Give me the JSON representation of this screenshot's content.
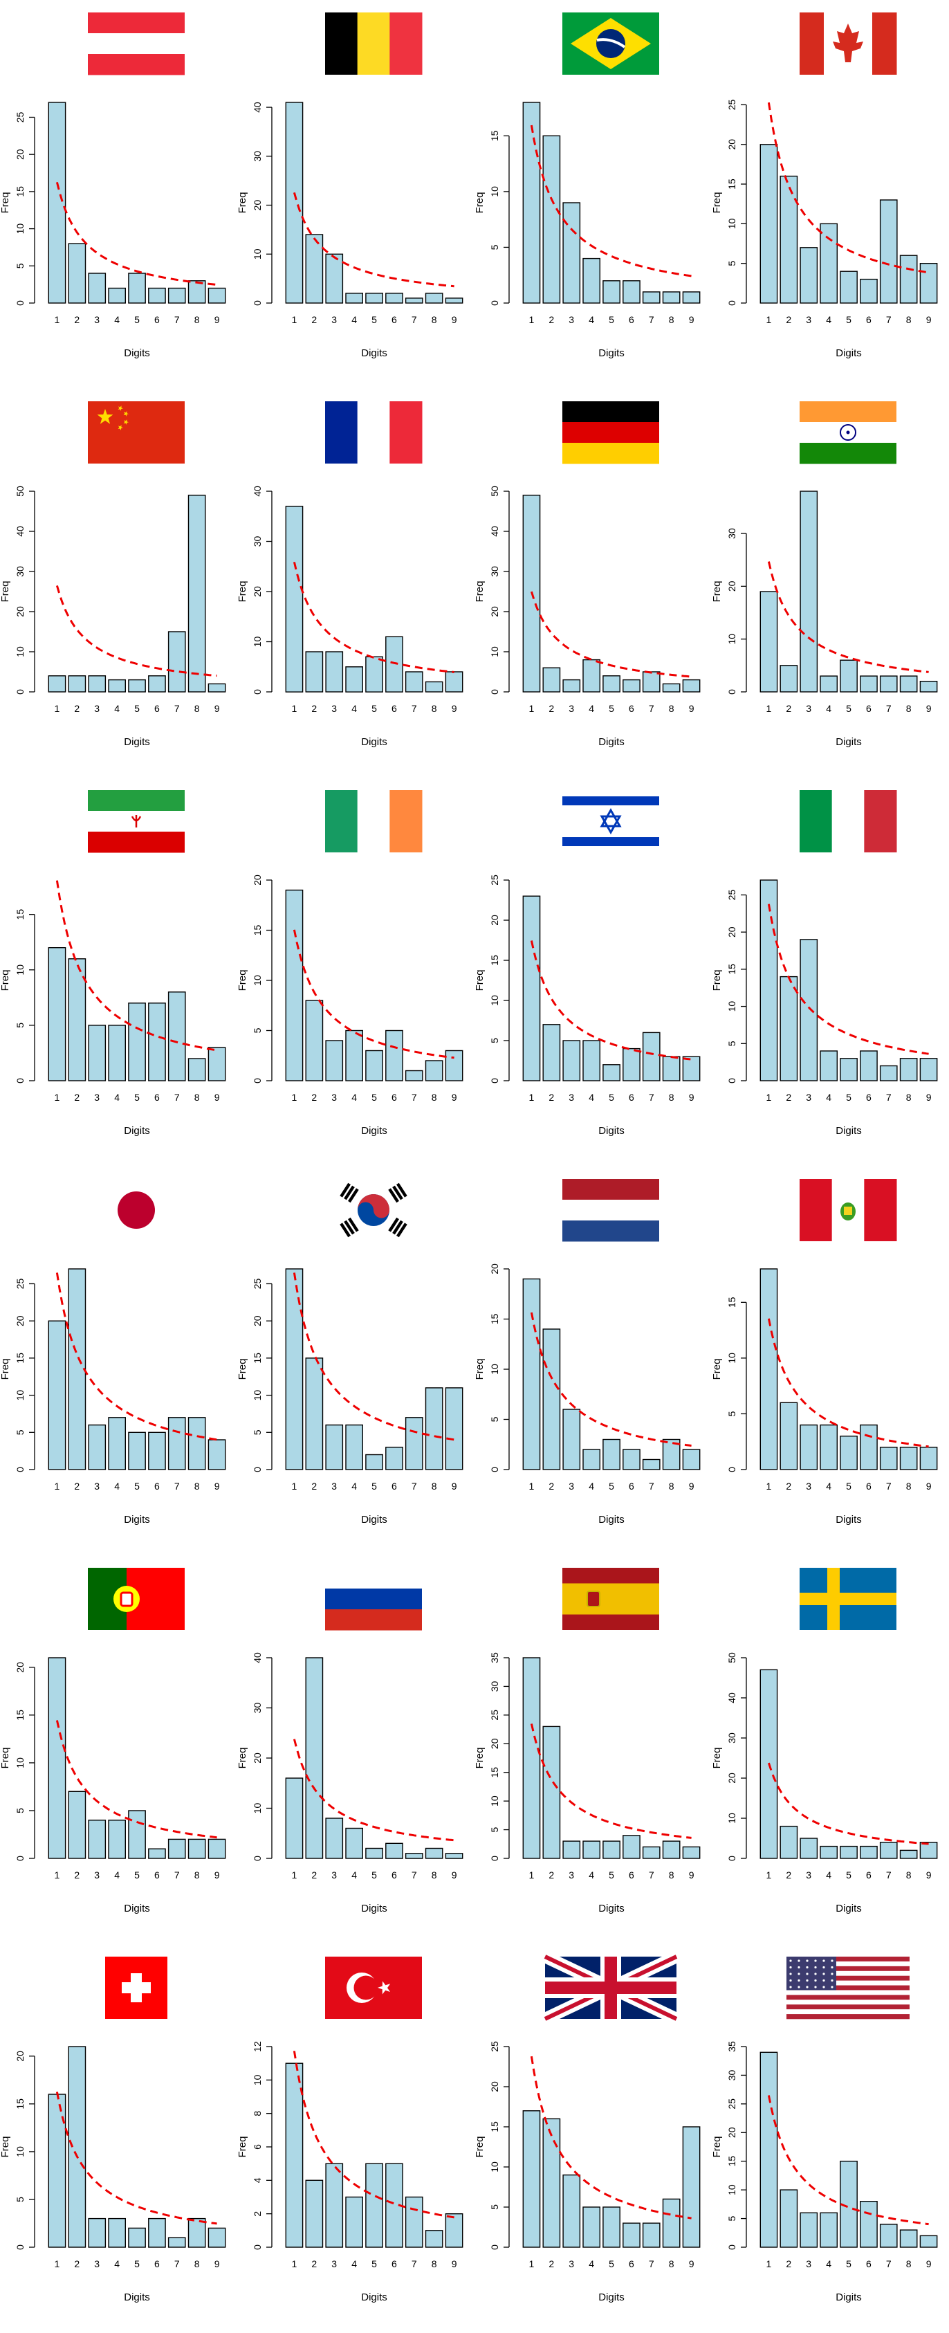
{
  "chart_data": [
    {
      "type": "bar",
      "flag": "austria",
      "categories": [
        "1",
        "2",
        "3",
        "4",
        "5",
        "6",
        "7",
        "8",
        "9"
      ],
      "values": [
        27,
        8,
        4,
        2,
        4,
        2,
        2,
        3,
        2
      ],
      "benford_total": 54,
      "yticks": [
        0,
        5,
        10,
        15,
        20,
        25
      ],
      "ylim": [
        0,
        27
      ],
      "xlabel": "Digits",
      "ylabel": "Freq"
    },
    {
      "type": "bar",
      "flag": "belgium",
      "categories": [
        "1",
        "2",
        "3",
        "4",
        "5",
        "6",
        "7",
        "8",
        "9"
      ],
      "values": [
        41,
        14,
        10,
        2,
        2,
        2,
        1,
        2,
        1
      ],
      "benford_total": 75,
      "yticks": [
        0,
        10,
        20,
        30,
        40
      ],
      "ylim": [
        0,
        41
      ],
      "xlabel": "Digits",
      "ylabel": "Freq"
    },
    {
      "type": "bar",
      "flag": "brazil",
      "categories": [
        "1",
        "2",
        "3",
        "4",
        "5",
        "6",
        "7",
        "8",
        "9"
      ],
      "values": [
        18,
        15,
        9,
        4,
        2,
        2,
        1,
        1,
        1
      ],
      "benford_total": 53,
      "yticks": [
        0,
        5,
        10,
        15
      ],
      "ylim": [
        0,
        18
      ],
      "xlabel": "Digits",
      "ylabel": "Freq"
    },
    {
      "type": "bar",
      "flag": "canada",
      "categories": [
        "1",
        "2",
        "3",
        "4",
        "5",
        "6",
        "7",
        "8",
        "9"
      ],
      "values": [
        20,
        16,
        7,
        10,
        4,
        3,
        13,
        6,
        5
      ],
      "benford_total": 84,
      "yticks": [
        0,
        5,
        10,
        15,
        20,
        25
      ],
      "ylim": [
        0,
        25.3
      ],
      "xlabel": "Digits",
      "ylabel": "Freq"
    },
    {
      "type": "bar",
      "flag": "china",
      "categories": [
        "1",
        "2",
        "3",
        "4",
        "5",
        "6",
        "7",
        "8",
        "9"
      ],
      "values": [
        4,
        4,
        4,
        3,
        3,
        4,
        15,
        49,
        2
      ],
      "benford_total": 88,
      "yticks": [
        0,
        10,
        20,
        30,
        40,
        50
      ],
      "ylim": [
        0,
        50
      ],
      "xlabel": "Digits",
      "ylabel": "Freq"
    },
    {
      "type": "bar",
      "flag": "france",
      "categories": [
        "1",
        "2",
        "3",
        "4",
        "5",
        "6",
        "7",
        "8",
        "9"
      ],
      "values": [
        37,
        8,
        8,
        5,
        7,
        11,
        4,
        2,
        4
      ],
      "benford_total": 86,
      "yticks": [
        0,
        10,
        20,
        30,
        40
      ],
      "ylim": [
        0,
        40
      ],
      "xlabel": "Digits",
      "ylabel": "Freq"
    },
    {
      "type": "bar",
      "flag": "germany",
      "categories": [
        "1",
        "2",
        "3",
        "4",
        "5",
        "6",
        "7",
        "8",
        "9"
      ],
      "values": [
        49,
        6,
        3,
        8,
        4,
        3,
        5,
        2,
        3
      ],
      "benford_total": 83,
      "yticks": [
        0,
        10,
        20,
        30,
        40,
        50
      ],
      "ylim": [
        0,
        50
      ],
      "xlabel": "Digits",
      "ylabel": "Freq"
    },
    {
      "type": "bar",
      "flag": "india",
      "categories": [
        "1",
        "2",
        "3",
        "4",
        "5",
        "6",
        "7",
        "8",
        "9"
      ],
      "values": [
        19,
        5,
        38,
        3,
        6,
        3,
        3,
        3,
        2
      ],
      "benford_total": 82,
      "yticks": [
        0,
        10,
        20,
        30
      ],
      "ylim": [
        0,
        38
      ],
      "xlabel": "Digits",
      "ylabel": "Freq"
    },
    {
      "type": "bar",
      "flag": "iran",
      "categories": [
        "1",
        "2",
        "3",
        "4",
        "5",
        "6",
        "7",
        "8",
        "9"
      ],
      "values": [
        12,
        11,
        5,
        5,
        7,
        7,
        8,
        2,
        3
      ],
      "benford_total": 60,
      "yticks": [
        0,
        5,
        10,
        15
      ],
      "ylim": [
        0,
        18.1
      ],
      "xlabel": "Digits",
      "ylabel": "Freq"
    },
    {
      "type": "bar",
      "flag": "ireland",
      "categories": [
        "1",
        "2",
        "3",
        "4",
        "5",
        "6",
        "7",
        "8",
        "9"
      ],
      "values": [
        19,
        8,
        4,
        5,
        3,
        5,
        1,
        2,
        3
      ],
      "benford_total": 50,
      "yticks": [
        0,
        5,
        10,
        15,
        20
      ],
      "ylim": [
        0,
        20
      ],
      "xlabel": "Digits",
      "ylabel": "Freq"
    },
    {
      "type": "bar",
      "flag": "israel",
      "categories": [
        "1",
        "2",
        "3",
        "4",
        "5",
        "6",
        "7",
        "8",
        "9"
      ],
      "values": [
        23,
        7,
        5,
        5,
        2,
        4,
        6,
        3,
        3
      ],
      "benford_total": 58,
      "yticks": [
        0,
        5,
        10,
        15,
        20,
        25
      ],
      "ylim": [
        0,
        25
      ],
      "xlabel": "Digits",
      "ylabel": "Freq"
    },
    {
      "type": "bar",
      "flag": "italy",
      "categories": [
        "1",
        "2",
        "3",
        "4",
        "5",
        "6",
        "7",
        "8",
        "9"
      ],
      "values": [
        27,
        14,
        19,
        4,
        3,
        4,
        2,
        3,
        3
      ],
      "benford_total": 79,
      "yticks": [
        0,
        5,
        10,
        15,
        20,
        25
      ],
      "ylim": [
        0,
        27
      ],
      "xlabel": "Digits",
      "ylabel": "Freq"
    },
    {
      "type": "bar",
      "flag": "japan",
      "categories": [
        "1",
        "2",
        "3",
        "4",
        "5",
        "6",
        "7",
        "8",
        "9"
      ],
      "values": [
        20,
        27,
        6,
        7,
        5,
        5,
        7,
        7,
        4
      ],
      "benford_total": 88,
      "yticks": [
        0,
        5,
        10,
        15,
        20,
        25
      ],
      "ylim": [
        0,
        27
      ],
      "xlabel": "Digits",
      "ylabel": "Freq"
    },
    {
      "type": "bar",
      "flag": "south-korea",
      "categories": [
        "1",
        "2",
        "3",
        "4",
        "5",
        "6",
        "7",
        "8",
        "9"
      ],
      "values": [
        27,
        15,
        6,
        6,
        2,
        3,
        7,
        11,
        11
      ],
      "benford_total": 88,
      "yticks": [
        0,
        5,
        10,
        15,
        20,
        25
      ],
      "ylim": [
        0,
        27
      ],
      "xlabel": "Digits",
      "ylabel": "Freq"
    },
    {
      "type": "bar",
      "flag": "netherlands",
      "categories": [
        "1",
        "2",
        "3",
        "4",
        "5",
        "6",
        "7",
        "8",
        "9"
      ],
      "values": [
        19,
        14,
        6,
        2,
        3,
        2,
        1,
        3,
        2
      ],
      "benford_total": 52,
      "yticks": [
        0,
        5,
        10,
        15,
        20
      ],
      "ylim": [
        0,
        20
      ],
      "xlabel": "Digits",
      "ylabel": "Freq"
    },
    {
      "type": "bar",
      "flag": "peru",
      "categories": [
        "1",
        "2",
        "3",
        "4",
        "5",
        "6",
        "7",
        "8",
        "9"
      ],
      "values": [
        18,
        6,
        4,
        4,
        3,
        4,
        2,
        2,
        2
      ],
      "benford_total": 45,
      "yticks": [
        0,
        5,
        10,
        15
      ],
      "ylim": [
        0,
        18
      ],
      "xlabel": "Digits",
      "ylabel": "Freq"
    },
    {
      "type": "bar",
      "flag": "portugal",
      "categories": [
        "1",
        "2",
        "3",
        "4",
        "5",
        "6",
        "7",
        "8",
        "9"
      ],
      "values": [
        21,
        7,
        4,
        4,
        5,
        1,
        2,
        2,
        2
      ],
      "benford_total": 48,
      "yticks": [
        0,
        5,
        10,
        15,
        20
      ],
      "ylim": [
        0,
        21
      ],
      "xlabel": "Digits",
      "ylabel": "Freq"
    },
    {
      "type": "bar",
      "flag": "russia",
      "categories": [
        "1",
        "2",
        "3",
        "4",
        "5",
        "6",
        "7",
        "8",
        "9"
      ],
      "values": [
        16,
        40,
        8,
        6,
        2,
        3,
        1,
        2,
        1
      ],
      "benford_total": 79,
      "yticks": [
        0,
        10,
        20,
        30,
        40
      ],
      "ylim": [
        0,
        40
      ],
      "xlabel": "Digits",
      "ylabel": "Freq"
    },
    {
      "type": "bar",
      "flag": "spain",
      "categories": [
        "1",
        "2",
        "3",
        "4",
        "5",
        "6",
        "7",
        "8",
        "9"
      ],
      "values": [
        35,
        23,
        3,
        3,
        3,
        4,
        2,
        3,
        2
      ],
      "benford_total": 78,
      "yticks": [
        0,
        5,
        10,
        15,
        20,
        25,
        30,
        35
      ],
      "ylim": [
        0,
        35
      ],
      "xlabel": "Digits",
      "ylabel": "Freq"
    },
    {
      "type": "bar",
      "flag": "sweden",
      "categories": [
        "1",
        "2",
        "3",
        "4",
        "5",
        "6",
        "7",
        "8",
        "9"
      ],
      "values": [
        47,
        8,
        5,
        3,
        3,
        3,
        4,
        2,
        4
      ],
      "benford_total": 79,
      "yticks": [
        0,
        10,
        20,
        30,
        40,
        50
      ],
      "ylim": [
        0,
        50
      ],
      "xlabel": "Digits",
      "ylabel": "Freq"
    },
    {
      "type": "bar",
      "flag": "switzerland",
      "categories": [
        "1",
        "2",
        "3",
        "4",
        "5",
        "6",
        "7",
        "8",
        "9"
      ],
      "values": [
        16,
        21,
        3,
        3,
        2,
        3,
        1,
        3,
        2
      ],
      "benford_total": 54,
      "yticks": [
        0,
        5,
        10,
        15,
        20
      ],
      "ylim": [
        0,
        21
      ],
      "xlabel": "Digits",
      "ylabel": "Freq"
    },
    {
      "type": "bar",
      "flag": "turkey",
      "categories": [
        "1",
        "2",
        "3",
        "4",
        "5",
        "6",
        "7",
        "8",
        "9"
      ],
      "values": [
        11,
        4,
        5,
        3,
        5,
        5,
        3,
        1,
        2
      ],
      "benford_total": 39,
      "yticks": [
        0,
        2,
        4,
        6,
        8,
        10,
        12
      ],
      "ylim": [
        0,
        12
      ],
      "xlabel": "Digits",
      "ylabel": "Freq"
    },
    {
      "type": "bar",
      "flag": "united-kingdom",
      "categories": [
        "1",
        "2",
        "3",
        "4",
        "5",
        "6",
        "7",
        "8",
        "9"
      ],
      "values": [
        17,
        16,
        9,
        5,
        5,
        3,
        3,
        6,
        15
      ],
      "benford_total": 79,
      "yticks": [
        0,
        5,
        10,
        15,
        20,
        25
      ],
      "ylim": [
        0,
        25
      ],
      "xlabel": "Digits",
      "ylabel": "Freq"
    },
    {
      "type": "bar",
      "flag": "united-states",
      "categories": [
        "1",
        "2",
        "3",
        "4",
        "5",
        "6",
        "7",
        "8",
        "9"
      ],
      "values": [
        34,
        10,
        6,
        6,
        15,
        8,
        4,
        3,
        2
      ],
      "benford_total": 88,
      "yticks": [
        0,
        5,
        10,
        15,
        20,
        25,
        30,
        35
      ],
      "ylim": [
        0,
        35
      ],
      "xlabel": "Digits",
      "ylabel": "Freq"
    }
  ],
  "colors": {
    "bar_fill": "#add8e6",
    "bar_stroke": "#000000",
    "benford_line": "#ee0000"
  }
}
